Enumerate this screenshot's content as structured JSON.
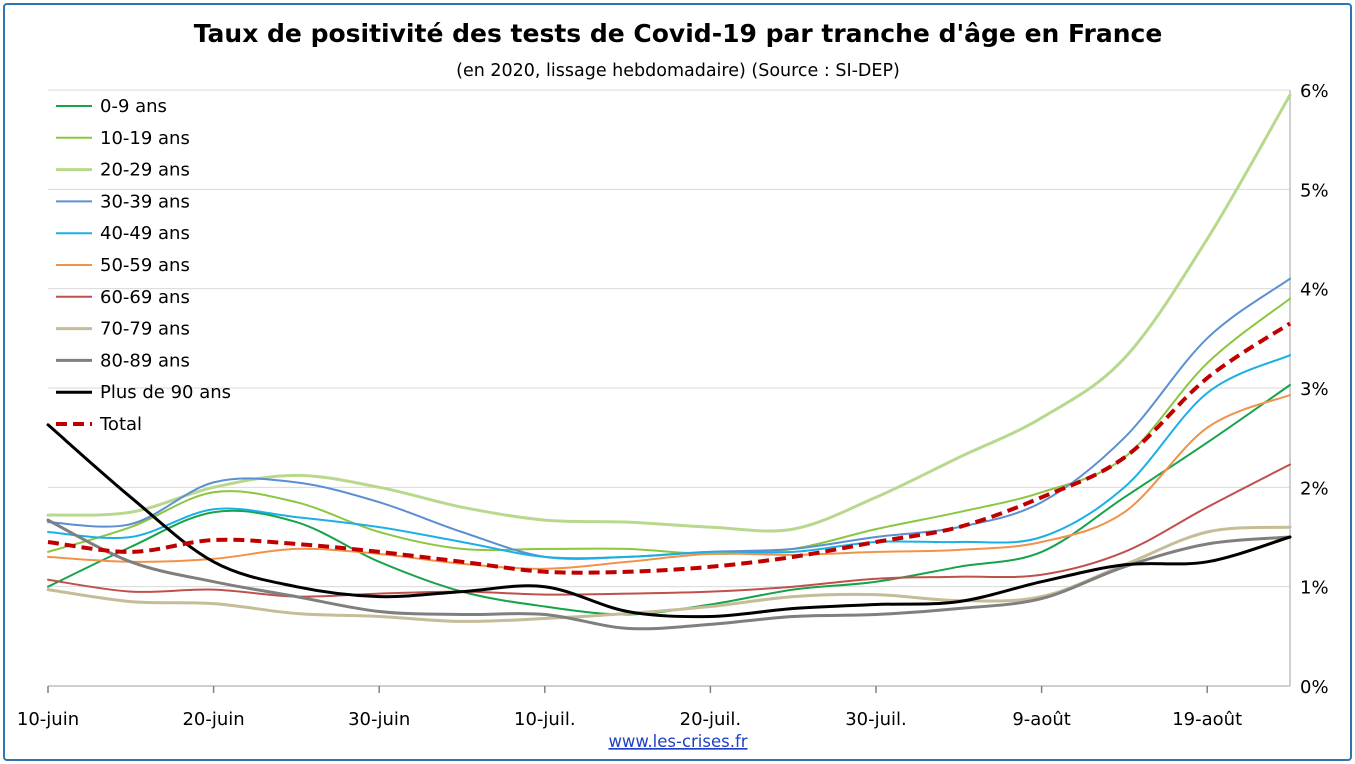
{
  "chart_data": {
    "type": "line",
    "title": "Taux de positivité des tests de Covid-19 par tranche d'âge en France",
    "subtitle": "(en 2020, lissage hebdomadaire) (Source : SI-DEP)",
    "xlabel": "",
    "ylabel": "",
    "x_tick_labels": [
      "10-juin",
      "20-juin",
      "30-juin",
      "10-juil.",
      "20-juil.",
      "30-juil.",
      "9-août",
      "19-août"
    ],
    "y_tick_labels": [
      "0%",
      "1%",
      "2%",
      "3%",
      "4%",
      "5%",
      "6%"
    ],
    "y_axis_side": "right",
    "ylim": [
      0,
      6
    ],
    "x_range_days": [
      0,
      75
    ],
    "grid": true,
    "legend_position": "top-left",
    "x": [
      0,
      5,
      10,
      15,
      20,
      25,
      30,
      35,
      40,
      45,
      50,
      55,
      60,
      65,
      70,
      75
    ],
    "series": [
      {
        "name": "0-9 ans",
        "color": "#16a34a",
        "width": 2,
        "dash": false,
        "values": [
          1.0,
          1.4,
          1.75,
          1.65,
          1.25,
          0.95,
          0.8,
          0.72,
          0.82,
          0.97,
          1.05,
          1.2,
          1.35,
          1.9,
          2.45,
          3.03
        ]
      },
      {
        "name": "10-19 ans",
        "color": "#8cc63f",
        "width": 2,
        "dash": false,
        "values": [
          1.35,
          1.6,
          1.95,
          1.85,
          1.55,
          1.38,
          1.38,
          1.38,
          1.33,
          1.38,
          1.58,
          1.75,
          1.95,
          2.3,
          3.25,
          3.9
        ]
      },
      {
        "name": "20-29 ans",
        "color": "#b8d98d",
        "width": 3,
        "dash": false,
        "values": [
          1.72,
          1.75,
          2.0,
          2.12,
          2.0,
          1.8,
          1.67,
          1.65,
          1.6,
          1.58,
          1.9,
          2.3,
          2.7,
          3.3,
          4.5,
          5.95
        ]
      },
      {
        "name": "30-39 ans",
        "color": "#5b8fd1",
        "width": 2,
        "dash": false,
        "values": [
          1.65,
          1.63,
          2.05,
          2.05,
          1.85,
          1.55,
          1.3,
          1.3,
          1.35,
          1.38,
          1.5,
          1.6,
          1.85,
          2.5,
          3.5,
          4.1
        ]
      },
      {
        "name": "40-49 ans",
        "color": "#1ab0e6",
        "width": 2,
        "dash": false,
        "values": [
          1.55,
          1.5,
          1.78,
          1.7,
          1.6,
          1.45,
          1.3,
          1.3,
          1.35,
          1.35,
          1.45,
          1.45,
          1.5,
          2.0,
          2.95,
          3.33
        ]
      },
      {
        "name": "50-59 ans",
        "color": "#f0924a",
        "width": 2,
        "dash": false,
        "values": [
          1.3,
          1.25,
          1.28,
          1.38,
          1.33,
          1.23,
          1.18,
          1.25,
          1.33,
          1.32,
          1.35,
          1.37,
          1.45,
          1.75,
          2.6,
          2.93
        ]
      },
      {
        "name": "60-69 ans",
        "color": "#c0504d",
        "width": 2,
        "dash": false,
        "values": [
          1.07,
          0.95,
          0.97,
          0.9,
          0.93,
          0.95,
          0.92,
          0.93,
          0.95,
          1.0,
          1.08,
          1.1,
          1.12,
          1.35,
          1.8,
          2.23
        ]
      },
      {
        "name": "70-79 ans",
        "color": "#c4bd97",
        "width": 3,
        "dash": false,
        "values": [
          0.97,
          0.85,
          0.83,
          0.73,
          0.7,
          0.65,
          0.68,
          0.73,
          0.8,
          0.9,
          0.92,
          0.86,
          0.9,
          1.22,
          1.55,
          1.6
        ]
      },
      {
        "name": "80-89 ans",
        "color": "#7f7f7f",
        "width": 3,
        "dash": false,
        "values": [
          1.67,
          1.25,
          1.05,
          0.9,
          0.75,
          0.72,
          0.72,
          0.58,
          0.62,
          0.7,
          0.72,
          0.78,
          0.88,
          1.2,
          1.43,
          1.5
        ]
      },
      {
        "name": "Plus de 90 ans",
        "color": "#000000",
        "width": 3,
        "dash": false,
        "values": [
          2.63,
          1.9,
          1.25,
          1.0,
          0.9,
          0.95,
          1.0,
          0.75,
          0.7,
          0.78,
          0.82,
          0.85,
          1.05,
          1.22,
          1.25,
          1.5
        ]
      },
      {
        "name": "Total",
        "color": "#c00000",
        "width": 4,
        "dash": true,
        "values": [
          1.45,
          1.35,
          1.47,
          1.43,
          1.35,
          1.25,
          1.15,
          1.15,
          1.2,
          1.3,
          1.45,
          1.6,
          1.9,
          2.3,
          3.1,
          3.65
        ]
      }
    ]
  },
  "footer": {
    "source_link": "www.les-crises.fr"
  }
}
